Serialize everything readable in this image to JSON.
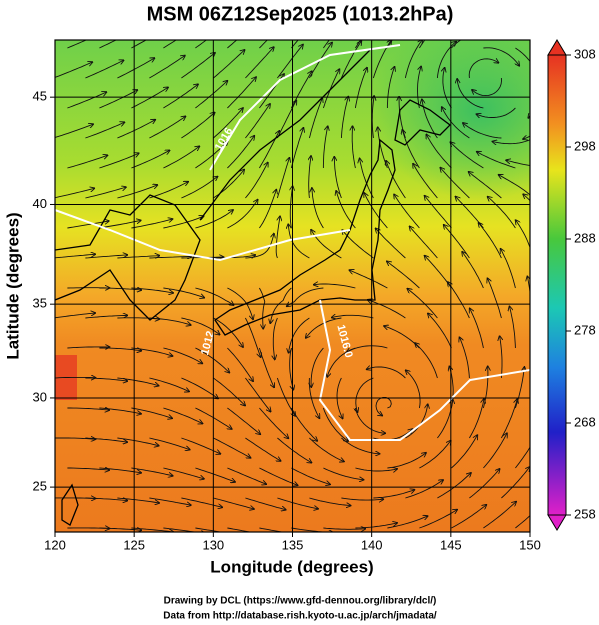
{
  "title": "MSM 06Z12Sep2025 (1013.2hPa)",
  "x_axis": {
    "label": "Longitude (degrees)",
    "lim": [
      120,
      150
    ],
    "ticks": [
      120,
      125,
      130,
      135,
      140,
      145,
      150
    ]
  },
  "y_axis": {
    "label": "Latitude  (degrees)",
    "lim": [
      22.4,
      47.5
    ],
    "ticks": [
      25,
      30,
      35,
      40,
      45
    ]
  },
  "colorbar": {
    "lim": [
      258,
      308
    ],
    "ticks": [
      258,
      268,
      278,
      288,
      298,
      308
    ]
  },
  "contour_labels": [
    "1016",
    "1012",
    "1016.0"
  ],
  "credits": [
    "Drawing by DCL (https://www.gfd-dennou.org/library/dcl/)",
    "Data from http://database.rish.kyoto-u.ac.jp/arch/jmadata/"
  ]
}
